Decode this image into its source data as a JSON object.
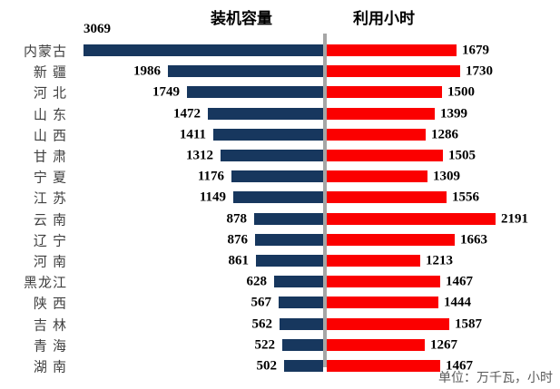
{
  "chart_data": {
    "type": "bar",
    "variant": "diverging-tornado",
    "orientation": "horizontal",
    "title_left": "装机容量",
    "title_right": "利用小时",
    "categories": [
      "内蒙古",
      "新 疆",
      "河 北",
      "山 东",
      "山 西",
      "甘 肃",
      "宁 夏",
      "江 苏",
      "云 南",
      "辽 宁",
      "河 南",
      "黑龙江",
      "陕 西",
      "吉 林",
      "青 海",
      "湖 南"
    ],
    "series": [
      {
        "name": "装机容量",
        "side": "left",
        "color": "#17375E",
        "values": [
          3069,
          1986,
          1749,
          1472,
          1411,
          1312,
          1176,
          1149,
          878,
          876,
          861,
          628,
          567,
          562,
          522,
          502
        ]
      },
      {
        "name": "利用小时",
        "side": "right",
        "color": "#FB0000",
        "values": [
          1679,
          1730,
          1500,
          1399,
          1286,
          1505,
          1309,
          1556,
          2191,
          1663,
          1213,
          1467,
          1444,
          1587,
          1267,
          1467
        ]
      }
    ],
    "axis": {
      "left_max": 3069,
      "right_max": 2191,
      "gridlines": false
    },
    "divider_color": "#A6A6A6",
    "data_labels": true,
    "unit_note": "单位：万千瓦，小时"
  }
}
